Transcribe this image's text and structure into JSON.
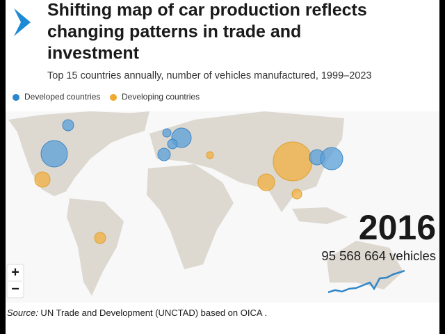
{
  "header": {
    "title_lines": [
      "Shifting map of car production reflects",
      "changing patterns in trade and",
      "investment"
    ],
    "subtitle": "Top 15 countries annually, number of vehicles manufactured, 1999–2023"
  },
  "legend": {
    "items": [
      "Developed countries",
      "Developing countries"
    ]
  },
  "overlay": {
    "year": "2016",
    "total": "95 568 664 vehicles"
  },
  "zoom": {
    "in": "+",
    "out": "−"
  },
  "source": {
    "label": "Source:",
    "text": " UN Trade and Development (UNCTAD) based on OICA ."
  }
}
